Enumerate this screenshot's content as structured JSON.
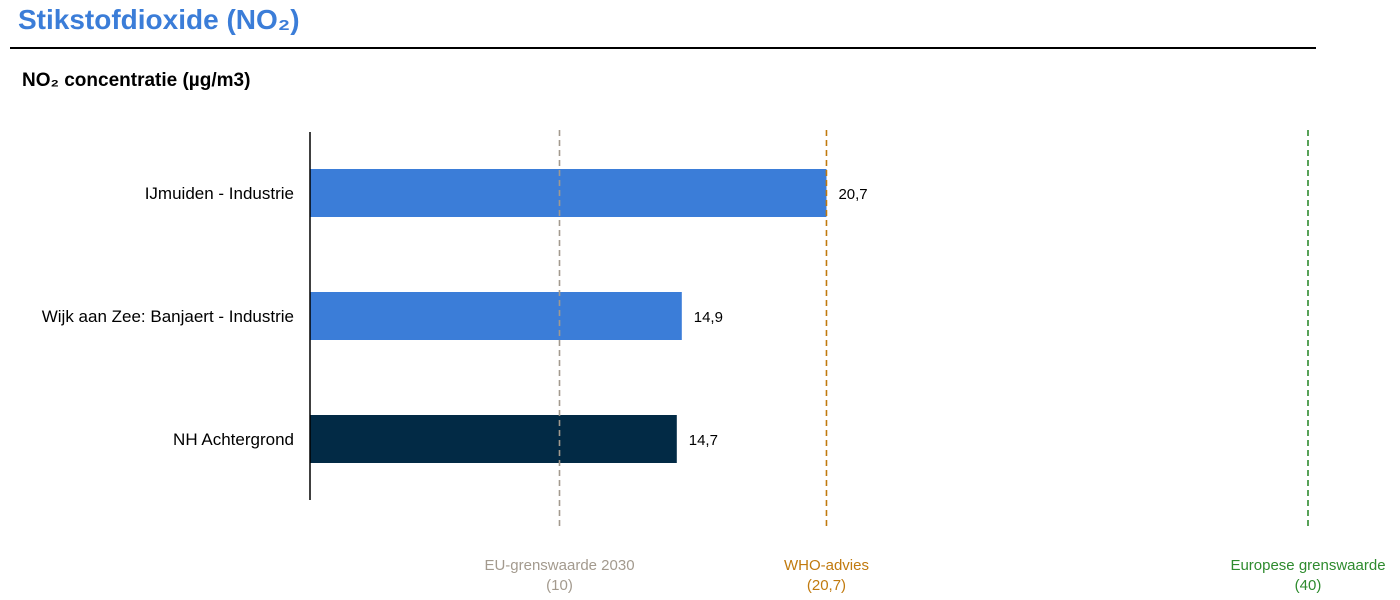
{
  "header": {
    "title": "Stikstofdioxide (NO₂)"
  },
  "chart_data": {
    "type": "bar",
    "orientation": "horizontal",
    "title": "NO₂ concentratie (µg/m3)",
    "categories": [
      "IJmuiden - Industrie",
      "Wijk aan Zee: Banjaert - Industrie",
      "NH Achtergrond"
    ],
    "values": [
      20.7,
      14.9,
      14.7
    ],
    "value_labels": [
      "20,7",
      "14,9",
      "14,7"
    ],
    "bar_colors": [
      "#3b7dd8",
      "#3b7dd8",
      "#022a45"
    ],
    "xlim": [
      0,
      40
    ],
    "grid": false,
    "reference_lines": [
      {
        "label": "EU-grenswaarde 2030",
        "value_label": "(10)",
        "value": 10,
        "color": "#a39a8e"
      },
      {
        "label": "WHO-advies",
        "value_label": "(20,7)",
        "value": 20.7,
        "color": "#c17a0e"
      },
      {
        "label": "Europese grenswaarde",
        "value_label": "(40)",
        "value": 40,
        "color": "#2e8b2e"
      }
    ]
  }
}
